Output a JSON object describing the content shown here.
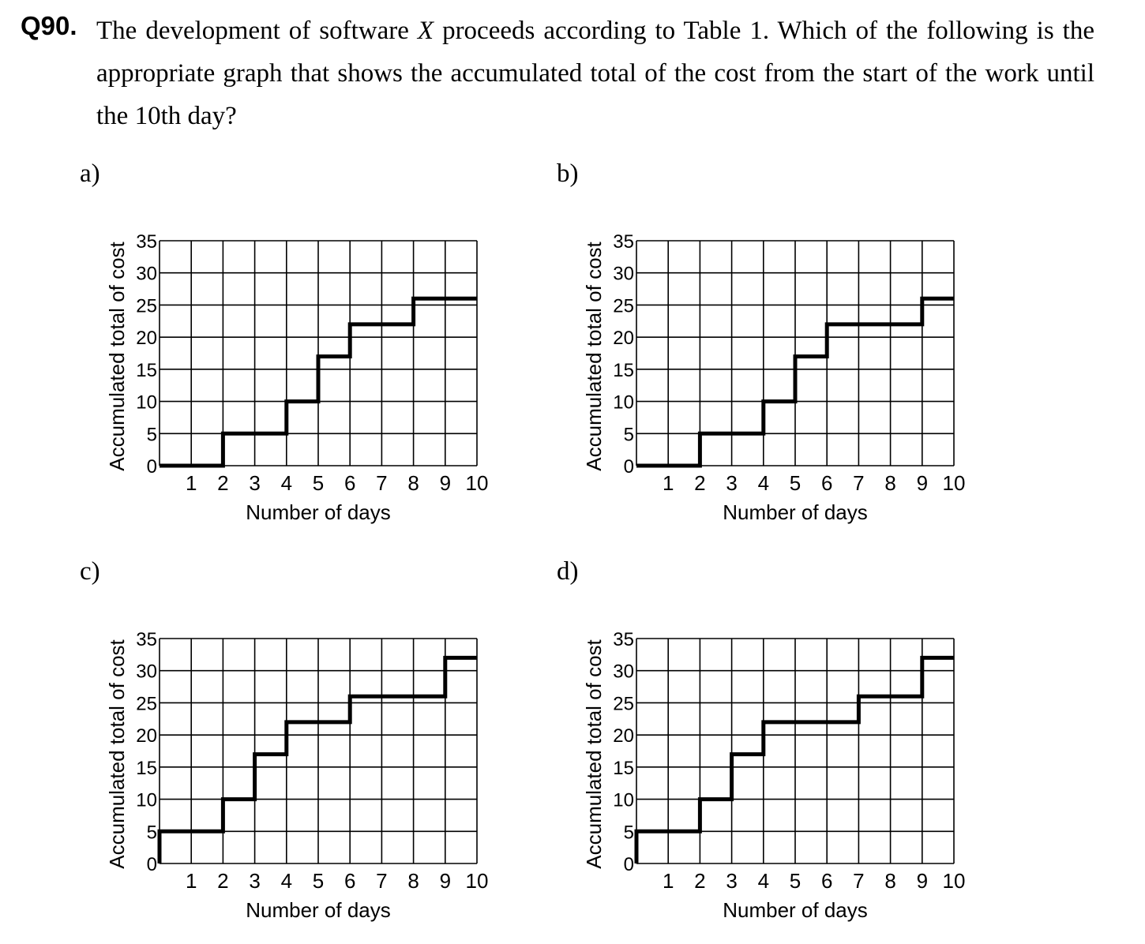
{
  "question": {
    "number": "Q90.",
    "text_before": "The development of software ",
    "variable": "X",
    "text_after": " proceeds according to Table 1. Which of the following is the appropriate graph that shows the accumulated total of the cost from the start of the work until the 10th day?"
  },
  "chart_data": [
    {
      "option": "a)",
      "type": "line",
      "step": true,
      "xlabel": "Number of days",
      "ylabel": "Accumulated total of cost",
      "xlim": [
        0,
        10
      ],
      "ylim": [
        0,
        35
      ],
      "x_ticks": [
        1,
        2,
        3,
        4,
        5,
        6,
        7,
        8,
        9,
        10
      ],
      "y_ticks": [
        0,
        5,
        10,
        15,
        20,
        25,
        30,
        35
      ],
      "grid": true,
      "series": [
        {
          "x": [
            0,
            2,
            4,
            5,
            6,
            8,
            10
          ],
          "y": [
            0,
            5,
            10,
            17,
            22,
            26,
            26
          ]
        }
      ]
    },
    {
      "option": "b)",
      "type": "line",
      "step": true,
      "xlabel": "Number of days",
      "ylabel": "Accumulated total of cost",
      "xlim": [
        0,
        10
      ],
      "ylim": [
        0,
        35
      ],
      "x_ticks": [
        1,
        2,
        3,
        4,
        5,
        6,
        7,
        8,
        9,
        10
      ],
      "y_ticks": [
        0,
        5,
        10,
        15,
        20,
        25,
        30,
        35
      ],
      "grid": true,
      "series": [
        {
          "x": [
            0,
            2,
            4,
            5,
            6,
            9,
            10
          ],
          "y": [
            0,
            5,
            10,
            17,
            22,
            26,
            26
          ]
        }
      ]
    },
    {
      "option": "c)",
      "type": "line",
      "step": true,
      "xlabel": "Number of days",
      "ylabel": "Accumulated total of cost",
      "xlim": [
        0,
        10
      ],
      "ylim": [
        0,
        35
      ],
      "x_ticks": [
        1,
        2,
        3,
        4,
        5,
        6,
        7,
        8,
        9,
        10
      ],
      "y_ticks": [
        0,
        5,
        10,
        15,
        20,
        25,
        30,
        35
      ],
      "grid": true,
      "series": [
        {
          "x": [
            0,
            0,
            2,
            3,
            4,
            6,
            9,
            10
          ],
          "y": [
            0,
            5,
            10,
            17,
            22,
            26,
            32,
            32
          ]
        }
      ]
    },
    {
      "option": "d)",
      "type": "line",
      "step": true,
      "xlabel": "Number of days",
      "ylabel": "Accumulated total of cost",
      "xlim": [
        0,
        10
      ],
      "ylim": [
        0,
        35
      ],
      "x_ticks": [
        1,
        2,
        3,
        4,
        5,
        6,
        7,
        8,
        9,
        10
      ],
      "y_ticks": [
        0,
        5,
        10,
        15,
        20,
        25,
        30,
        35
      ],
      "grid": true,
      "series": [
        {
          "x": [
            0,
            0,
            2,
            3,
            4,
            7,
            9,
            10
          ],
          "y": [
            0,
            5,
            10,
            17,
            22,
            26,
            32,
            32
          ]
        }
      ]
    }
  ]
}
